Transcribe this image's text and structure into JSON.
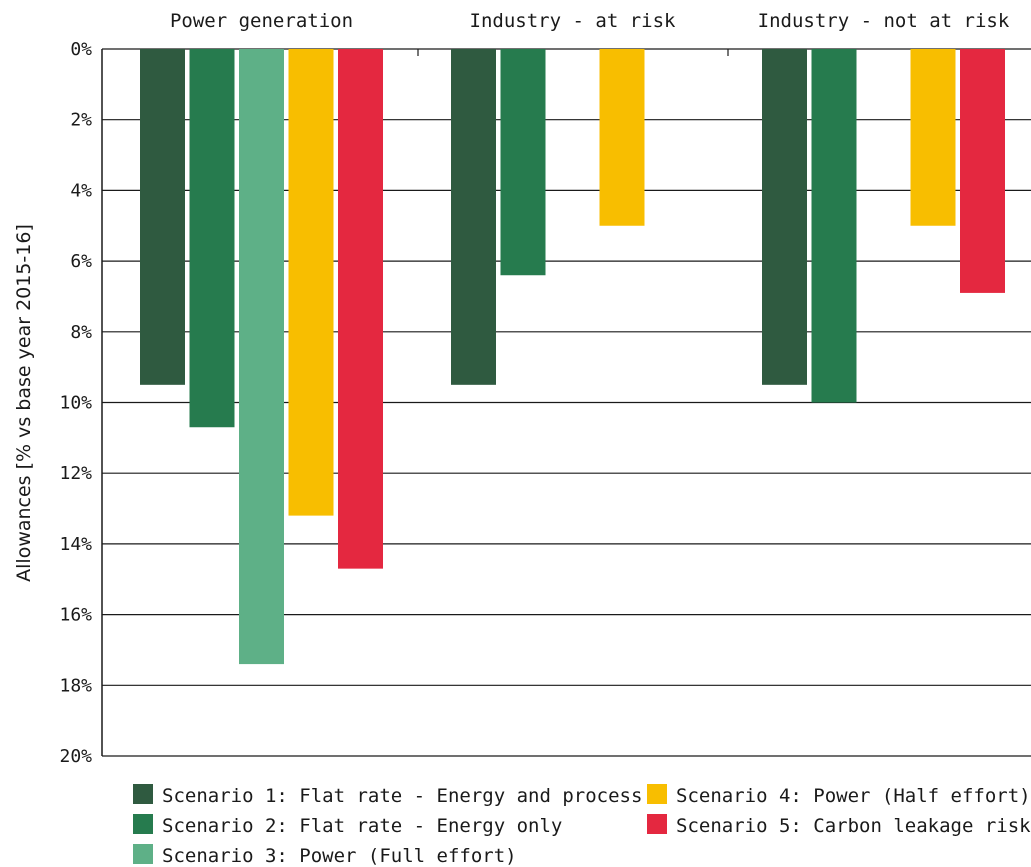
{
  "chart_data": {
    "type": "bar",
    "orientation": "vertical-downward",
    "title": "",
    "xlabel": "",
    "ylabel": "Allowances [% vs base year 2015-16]",
    "ylim": [
      0,
      20
    ],
    "y_ticks": [
      "0%",
      "2%",
      "4%",
      "6%",
      "8%",
      "10%",
      "12%",
      "14%",
      "16%",
      "18%",
      "20%"
    ],
    "grid": true,
    "legend_position": "bottom",
    "categories": [
      "Power generation",
      "Industry - at risk",
      "Industry - not at risk"
    ],
    "series": [
      {
        "name": "Scenario 1: Flat rate - Energy and process",
        "color": "#2f5a40",
        "values": [
          9.5,
          9.5,
          9.5
        ]
      },
      {
        "name": "Scenario 2: Flat rate - Energy only",
        "color": "#267b4e",
        "values": [
          10.7,
          6.4,
          10.0
        ]
      },
      {
        "name": "Scenario 3: Power (Full effort)",
        "color": "#5eb087",
        "values": [
          17.4,
          null,
          null
        ]
      },
      {
        "name": "Scenario 4: Power (Half effort)",
        "color": "#f8be00",
        "values": [
          13.2,
          5.0,
          5.0
        ]
      },
      {
        "name": "Scenario 5: Carbon leakage risk",
        "color": "#e42840",
        "values": [
          14.7,
          null,
          6.9
        ]
      }
    ]
  }
}
